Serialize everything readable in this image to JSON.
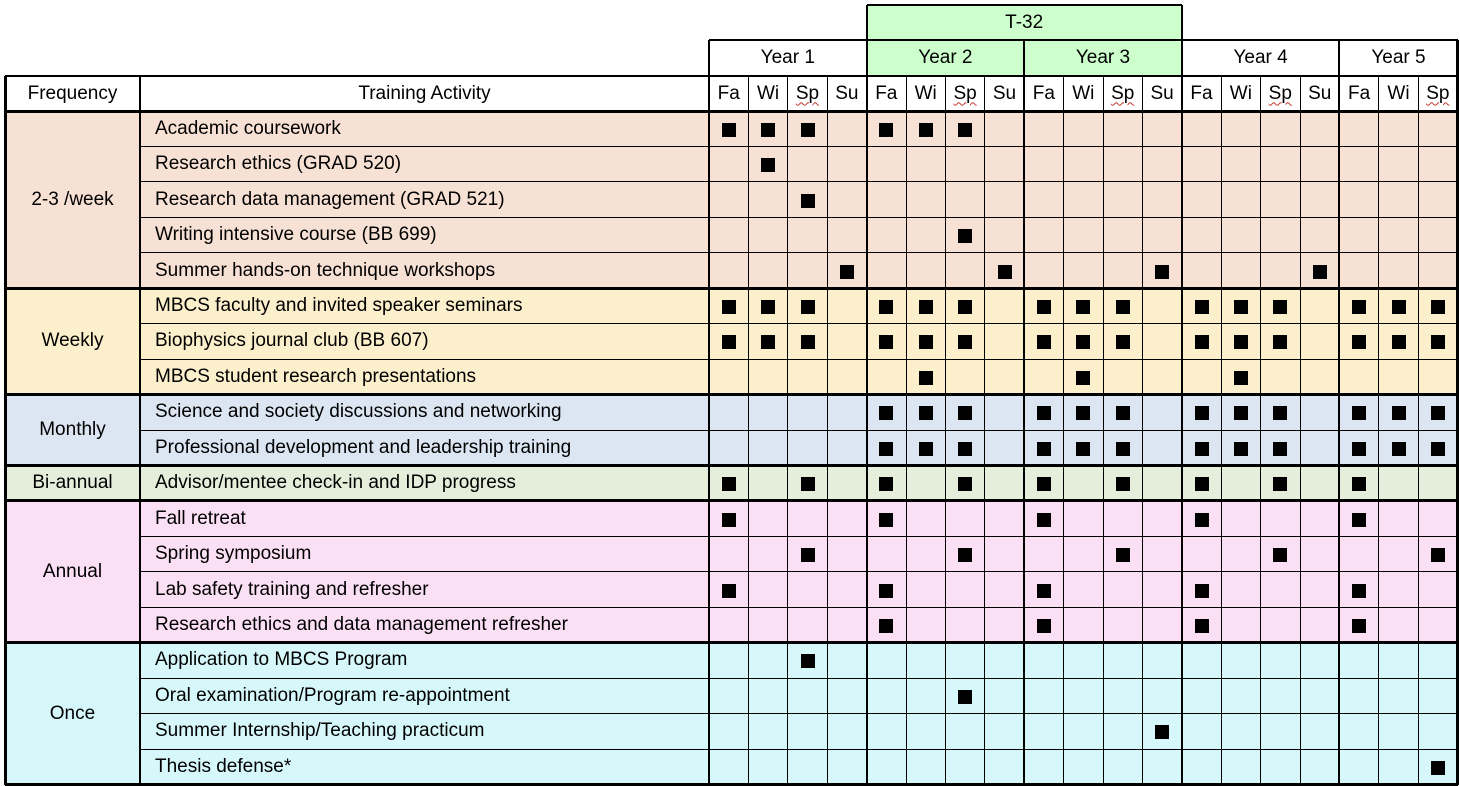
{
  "header": {
    "grant_label": "T-32",
    "frequency_header": "Frequency",
    "activity_header": "Training Activity",
    "years": [
      "Year 1",
      "Year 2",
      "Year 3",
      "Year 4",
      "Year 5"
    ],
    "year_term_counts": [
      4,
      4,
      4,
      4,
      3
    ],
    "terms": [
      "Fa",
      "Wi",
      "Sp",
      "Su",
      "Fa",
      "Wi",
      "Sp",
      "Su",
      "Fa",
      "Wi",
      "Sp",
      "Su",
      "Fa",
      "Wi",
      "Sp",
      "Su",
      "Fa",
      "Wi",
      "Sp"
    ],
    "t32_years": [
      1,
      2
    ]
  },
  "colors": {
    "t32_header": "#ccffcc",
    "border": "#000000",
    "grid": "#000000",
    "marker": "#000000"
  },
  "groups": [
    {
      "frequency": "2-3 /week",
      "color": "#f7e1d4",
      "rows": [
        {
          "activity": "Academic coursework",
          "marks": [
            0,
            1,
            2,
            4,
            5,
            6
          ]
        },
        {
          "activity": "Research ethics (GRAD 520)",
          "marks": [
            1
          ]
        },
        {
          "activity": "Research data management (GRAD 521)",
          "marks": [
            2
          ]
        },
        {
          "activity": "Writing intensive course (BB 699)",
          "marks": [
            6
          ]
        },
        {
          "activity": "Summer hands-on technique workshops",
          "marks": [
            3,
            7,
            11,
            15
          ]
        }
      ]
    },
    {
      "frequency": "Weekly",
      "color": "#fbefcc",
      "rows": [
        {
          "activity": "MBCS faculty and invited speaker seminars",
          "marks": [
            0,
            1,
            2,
            4,
            5,
            6,
            8,
            9,
            10,
            12,
            13,
            14,
            16,
            17,
            18
          ]
        },
        {
          "activity": "Biophysics journal club (BB 607)",
          "marks": [
            0,
            1,
            2,
            4,
            5,
            6,
            8,
            9,
            10,
            12,
            13,
            14,
            16,
            17,
            18
          ]
        },
        {
          "activity": "MBCS student research presentations",
          "marks": [
            5,
            9,
            13
          ]
        }
      ]
    },
    {
      "frequency": "Monthly",
      "color": "#dce6f2",
      "rows": [
        {
          "activity": "Science and society discussions and networking",
          "marks": [
            4,
            5,
            6,
            8,
            9,
            10,
            12,
            13,
            14,
            16,
            17,
            18
          ]
        },
        {
          "activity": "Professional development and leadership training",
          "marks": [
            4,
            5,
            6,
            8,
            9,
            10,
            12,
            13,
            14,
            16,
            17,
            18
          ]
        }
      ]
    },
    {
      "frequency": "Bi-annual",
      "color": "#e4eedb",
      "rows": [
        {
          "activity": "Advisor/mentee check-in and IDP progress",
          "marks": [
            0,
            2,
            4,
            6,
            8,
            10,
            12,
            14,
            16
          ]
        }
      ]
    },
    {
      "frequency": "Annual",
      "color": "#fbe0f5",
      "rows": [
        {
          "activity": "Fall retreat",
          "marks": [
            0,
            4,
            8,
            12,
            16
          ]
        },
        {
          "activity": "Spring symposium",
          "marks": [
            2,
            6,
            10,
            14,
            18
          ]
        },
        {
          "activity": "Lab safety training and refresher",
          "marks": [
            0,
            4,
            8,
            12,
            16
          ]
        },
        {
          "activity": "Research ethics and data management refresher",
          "marks": [
            4,
            8,
            12,
            16
          ]
        }
      ]
    },
    {
      "frequency": "Once",
      "color": "#d7f8fb",
      "rows": [
        {
          "activity": "Application to MBCS Program",
          "marks": [
            2
          ]
        },
        {
          "activity": "Oral examination/Program re-appointment",
          "marks": [
            6
          ]
        },
        {
          "activity": "Summer Internship/Teaching practicum",
          "marks": [
            11
          ]
        },
        {
          "activity": "Thesis defense*",
          "marks": [
            18
          ]
        }
      ]
    }
  ]
}
